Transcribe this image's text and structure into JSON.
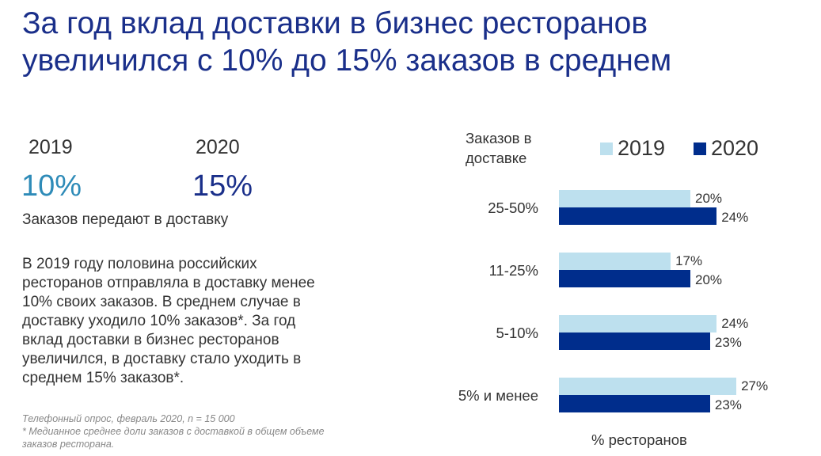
{
  "title": "За год вклад доставки в бизнес ресторанов увеличился с 10% до 15% заказов в среднем",
  "stats": {
    "year1": "2019",
    "value1": "10%",
    "year2": "2020",
    "value2": "15%",
    "caption": "Заказов передают в доставку"
  },
  "body": "В 2019 году половина российских ресторанов отправляла в доставку менее 10% своих заказов. В среднем случае в доставку уходило 10% заказов*. За год вклад доставки в бизнес ресторанов увеличился, в доставку стало уходить в среднем 15% заказов*.",
  "notes": {
    "survey": "Телефонный опрос, февраль 2020, n = 15 000",
    "footnote": "* Медианное среднее доли заказов с доставкой в общем объеме заказов ресторана."
  },
  "colors": {
    "title": "#1a2f8a",
    "v2019": "#2e8bb8",
    "v2020": "#1a2f8a",
    "bar2019": "#bde0ee",
    "bar2020": "#002d8c"
  },
  "chart_data": {
    "type": "bar",
    "orientation": "horizontal",
    "ylabel": "Заказов в доставке",
    "xlabel": "% ресторанов",
    "categories": [
      "25-50%",
      "11-25%",
      "5-10%",
      "5% и менее"
    ],
    "series": [
      {
        "name": "2019",
        "values": [
          20,
          17,
          24,
          27
        ]
      },
      {
        "name": "2020",
        "values": [
          24,
          20,
          23,
          23
        ]
      }
    ],
    "legend": "top-right"
  }
}
